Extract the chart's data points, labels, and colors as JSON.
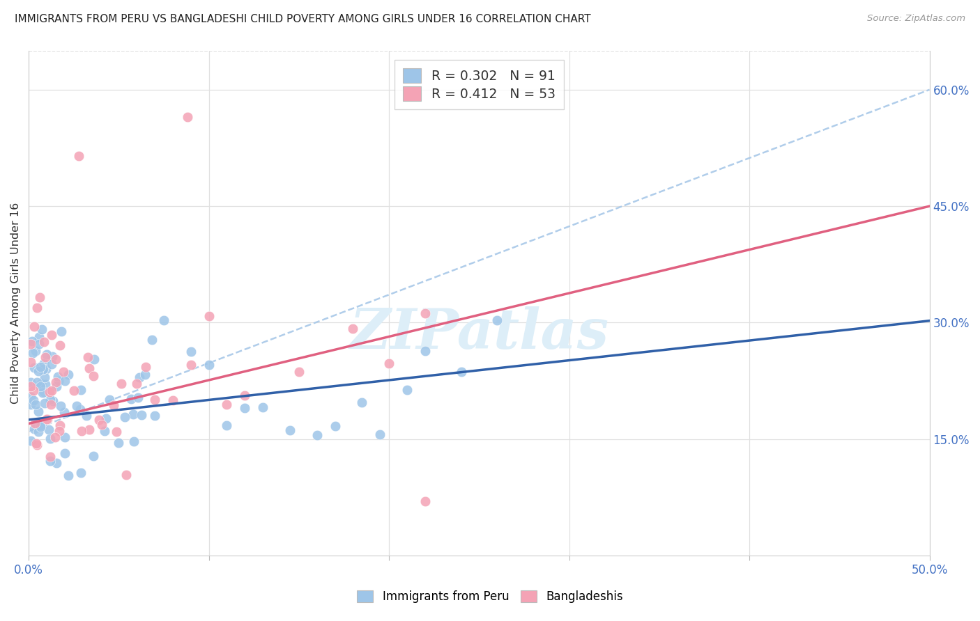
{
  "title": "IMMIGRANTS FROM PERU VS BANGLADESHI CHILD POVERTY AMONG GIRLS UNDER 16 CORRELATION CHART",
  "source": "Source: ZipAtlas.com",
  "ylabel": "Child Poverty Among Girls Under 16",
  "xlim": [
    0.0,
    0.5
  ],
  "ylim": [
    0.0,
    0.65
  ],
  "x_ticks": [
    0.0,
    0.1,
    0.2,
    0.3,
    0.4,
    0.5
  ],
  "right_y_ticks": [
    0.15,
    0.3,
    0.45,
    0.6
  ],
  "right_y_labels": [
    "15.0%",
    "30.0%",
    "45.0%",
    "60.0%"
  ],
  "blue_scatter_color": "#9ec5e8",
  "pink_scatter_color": "#f4a3b5",
  "blue_line_color": "#3060a8",
  "pink_line_color": "#e06080",
  "dashed_line_color": "#a8c8e8",
  "watermark_color": "#ddeef8",
  "grid_color": "#e0e0e0",
  "title_color": "#222222",
  "axis_tick_color": "#4472c4",
  "ylabel_color": "#333333",
  "source_color": "#999999",
  "blue_intercept": 0.175,
  "blue_slope": 0.255,
  "pink_intercept": 0.17,
  "pink_slope": 0.56,
  "dash_intercept": 0.16,
  "dash_slope": 0.88
}
